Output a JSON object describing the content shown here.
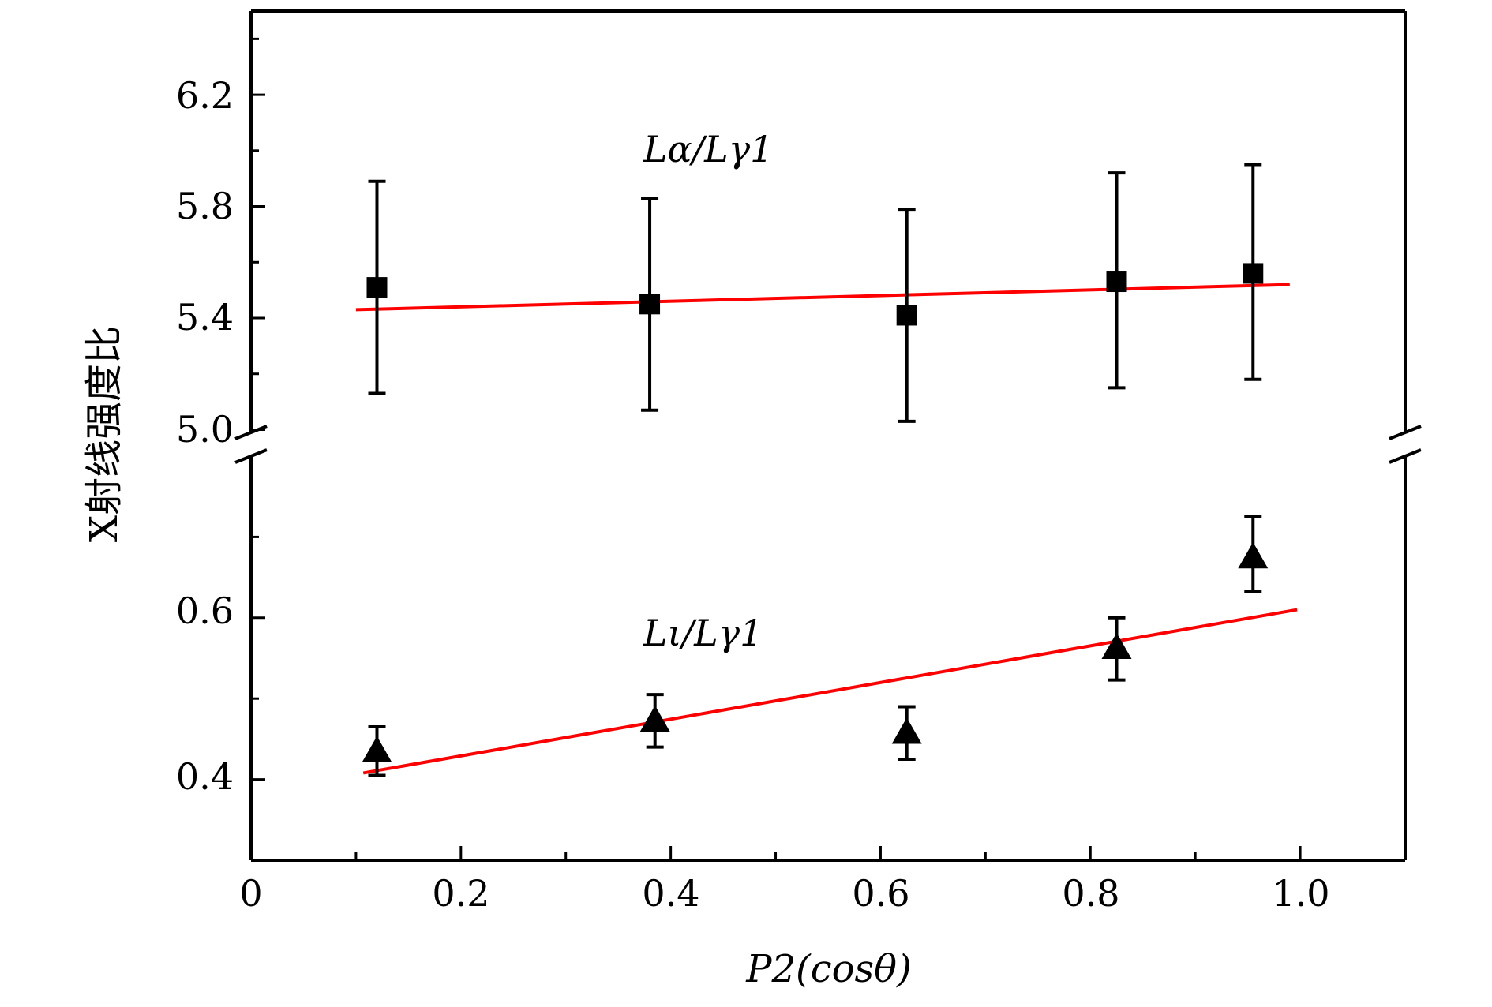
{
  "chart_data": {
    "type": "scatter",
    "xlabel": "P2(cosθ)",
    "ylabel": "X射线强度比",
    "xlim": [
      0,
      1.1
    ],
    "x_ticks": [
      "0",
      "0.2",
      "0.4",
      "0.6",
      "0.8",
      "1.0"
    ],
    "y_break": true,
    "upper_panel": {
      "ylim": [
        4.99,
        6.5
      ],
      "y_ticks": [
        "5.0",
        "5.4",
        "5.8",
        "6.2"
      ]
    },
    "lower_panel": {
      "ylim": [
        0.3,
        0.8
      ],
      "y_ticks": [
        "0.4",
        "0.6"
      ]
    },
    "series": [
      {
        "name": "Lα/Lγ1",
        "label_text": "Lα/Lγ1",
        "panel": "upper",
        "marker": "square",
        "x": [
          0.12,
          0.38,
          0.625,
          0.825,
          0.955
        ],
        "y": [
          5.51,
          5.45,
          5.41,
          5.53,
          5.56
        ],
        "err_low": [
          5.13,
          5.07,
          5.03,
          5.15,
          5.18
        ],
        "err_high": [
          5.89,
          5.83,
          5.79,
          5.92,
          5.95
        ],
        "fit": {
          "x": [
            0.1,
            0.99
          ],
          "y": [
            5.43,
            5.52
          ],
          "color": "#ff0000"
        }
      },
      {
        "name": "Lι/Lγ1",
        "label_text": "Lι/Lγ1",
        "panel": "lower",
        "marker": "triangle",
        "x": [
          0.12,
          0.385,
          0.625,
          0.825,
          0.955
        ],
        "y": [
          0.435,
          0.473,
          0.458,
          0.563,
          0.675
        ],
        "err_low": [
          0.405,
          0.44,
          0.425,
          0.523,
          0.632
        ],
        "err_high": [
          0.465,
          0.505,
          0.49,
          0.6,
          0.725
        ],
        "fit": {
          "x": [
            0.107,
            0.997
          ],
          "y": [
            0.408,
            0.61
          ],
          "color": "#ff0000"
        }
      }
    ]
  }
}
